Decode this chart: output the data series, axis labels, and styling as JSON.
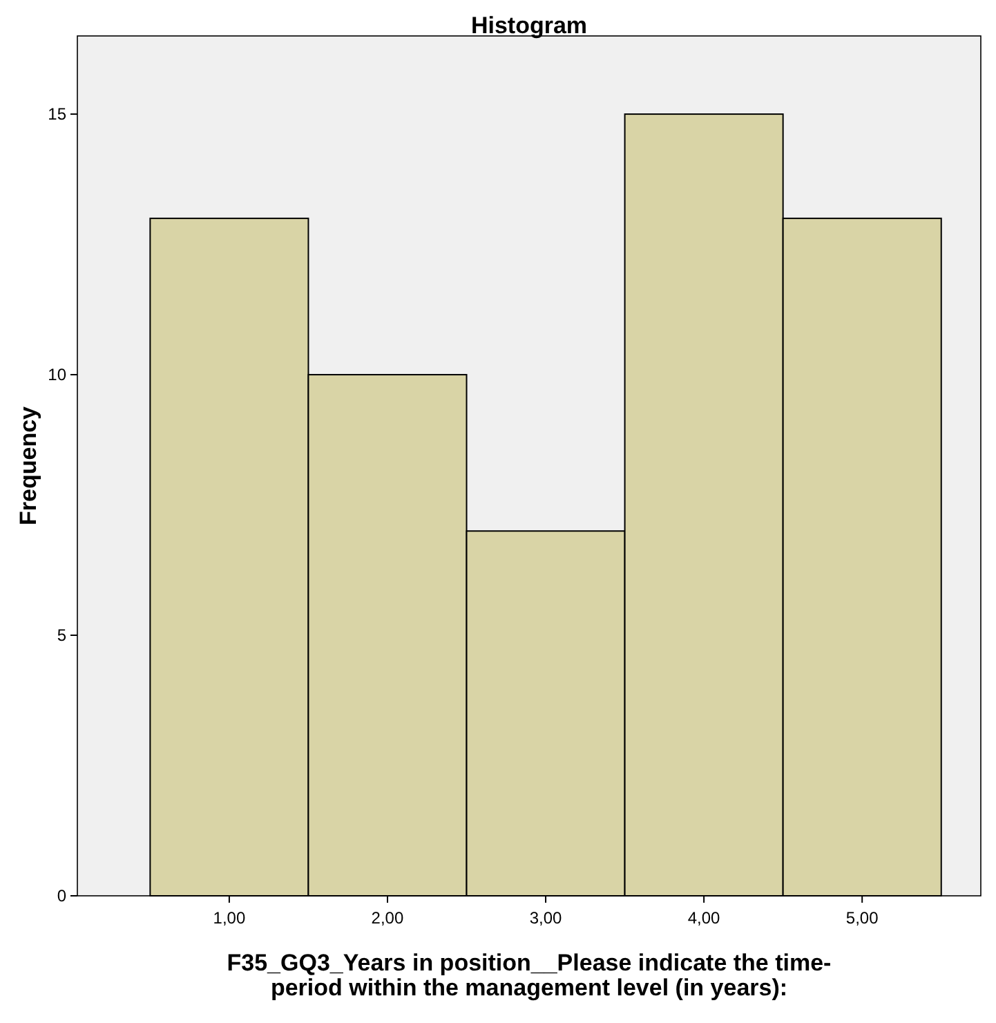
{
  "chart_data": {
    "type": "histogram",
    "title": "Histogram",
    "xlabel": "F35_GQ3_Years in position__Please indicate the time-\nperiod within the management level (in years):",
    "ylabel": "Frequency",
    "bins": [
      0.5,
      1.5,
      2.5,
      3.5,
      4.5,
      5.5
    ],
    "values": [
      13,
      10,
      7,
      15,
      13
    ],
    "color": "#d9d4a6",
    "xlim": [
      0.04,
      5.75
    ],
    "xticks": [
      {
        "value": 1,
        "label": "1,00"
      },
      {
        "value": 2,
        "label": "2,00"
      },
      {
        "value": 3,
        "label": "3,00"
      },
      {
        "value": 4,
        "label": "4,00"
      },
      {
        "value": 5,
        "label": "5,00"
      }
    ],
    "ylim": [
      0,
      16.5
    ],
    "yticks": [
      0,
      5,
      10,
      15
    ],
    "grid": false
  }
}
